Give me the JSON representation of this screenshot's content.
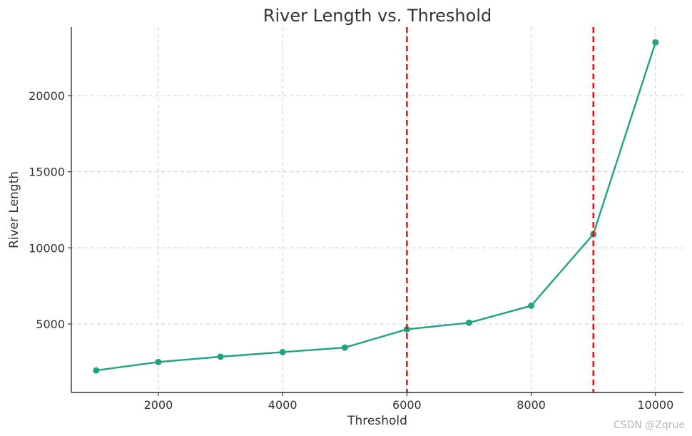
{
  "chart_data": {
    "type": "line",
    "title": "River Length vs. Threshold",
    "xlabel": "Threshold",
    "ylabel": "River Length",
    "xlim": [
      600,
      10450
    ],
    "ylim": [
      500,
      24500
    ],
    "xticks": [
      2000,
      4000,
      6000,
      8000,
      10000
    ],
    "yticks": [
      5000,
      10000,
      15000,
      20000
    ],
    "grid": true,
    "series": [
      {
        "x": [
          1000,
          2000,
          3000,
          4000,
          5000,
          6000,
          7000,
          8000,
          9000,
          10000
        ],
        "y": [
          1950,
          2500,
          2850,
          3150,
          3450,
          4650,
          5080,
          6200,
          10900,
          23500
        ],
        "color": "#1fa383"
      }
    ],
    "vertical_lines": [
      {
        "x": 6000,
        "color": "#ff0000",
        "style": "dashed"
      },
      {
        "x": 9000,
        "color": "#ff0000",
        "style": "dashed"
      }
    ]
  },
  "watermark": "CSDN @Zqrue"
}
